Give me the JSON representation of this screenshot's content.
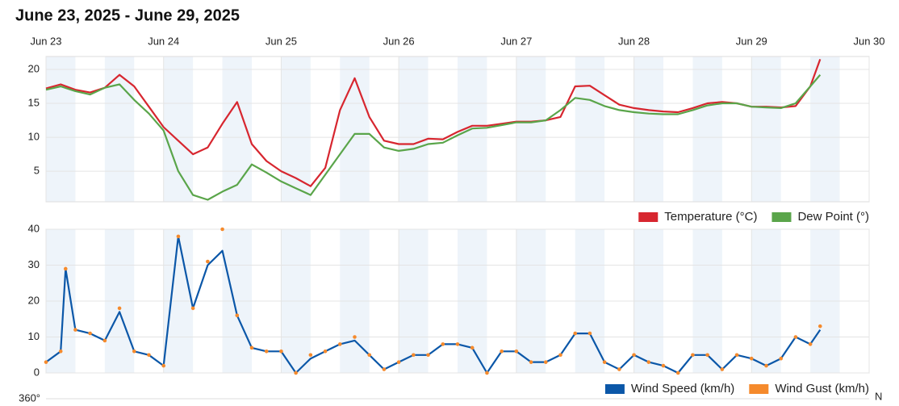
{
  "title": "June 23, 2025 - June 29, 2025",
  "direction_axis": {
    "top_label": "360°",
    "right_label": "N"
  },
  "chart_data": [
    {
      "type": "line",
      "x": [
        0,
        3,
        6,
        9,
        12,
        15,
        18,
        21,
        24,
        27,
        30,
        33,
        36,
        39,
        42,
        45,
        48,
        51,
        54,
        57,
        60,
        63,
        66,
        69,
        72,
        75,
        78,
        81,
        84,
        87,
        90,
        93,
        96,
        99,
        102,
        105,
        108,
        111,
        114,
        117,
        120,
        123,
        126,
        129,
        132,
        135,
        138,
        141,
        144,
        147,
        150,
        153,
        156,
        158
      ],
      "xlim": [
        0,
        168
      ],
      "xticks": [
        {
          "value": 0,
          "label": "Jun 23"
        },
        {
          "value": 24,
          "label": "Jun 24"
        },
        {
          "value": 48,
          "label": "Jun 25"
        },
        {
          "value": 72,
          "label": "Jun 26"
        },
        {
          "value": 96,
          "label": "Jun 27"
        },
        {
          "value": 120,
          "label": "Jun 28"
        },
        {
          "value": 144,
          "label": "Jun 29"
        },
        {
          "value": 168,
          "label": "Jun 30"
        }
      ],
      "ylim": [
        0.5,
        21.9
      ],
      "yticks": [
        5,
        10,
        15,
        20
      ],
      "grid": true,
      "legend": "bottom-right",
      "series": [
        {
          "name": "Temperature (°C)",
          "color": "#d7262f",
          "values": [
            17.2,
            17.8,
            17.0,
            16.6,
            17.3,
            19.2,
            17.5,
            14.5,
            11.5,
            9.5,
            7.5,
            8.5,
            12.0,
            15.2,
            9.0,
            6.5,
            5.0,
            4.0,
            2.8,
            5.5,
            14.0,
            18.7,
            13.0,
            9.5,
            9.0,
            9.0,
            9.8,
            9.7,
            10.8,
            11.7,
            11.7,
            12.0,
            12.3,
            12.3,
            12.5,
            13.0,
            17.5,
            17.6,
            16.2,
            14.8,
            14.3,
            14.0,
            13.8,
            13.7,
            14.3,
            15.0,
            15.2,
            15.0,
            14.5,
            14.5,
            14.4,
            14.6,
            17.5,
            21.5
          ]
        },
        {
          "name": "Dew Point (°)",
          "color": "#5aa54a",
          "values": [
            17.0,
            17.5,
            16.8,
            16.3,
            17.3,
            17.8,
            15.5,
            13.5,
            11.0,
            5.0,
            1.5,
            0.8,
            2.0,
            3.0,
            6.0,
            4.8,
            3.5,
            2.5,
            1.5,
            4.5,
            7.5,
            10.5,
            10.5,
            8.5,
            8.0,
            8.3,
            9.0,
            9.2,
            10.3,
            11.3,
            11.4,
            11.8,
            12.2,
            12.2,
            12.5,
            14.0,
            15.8,
            15.5,
            14.6,
            14.0,
            13.7,
            13.5,
            13.4,
            13.4,
            14.0,
            14.7,
            15.0,
            15.0,
            14.5,
            14.4,
            14.3,
            15.0,
            17.5,
            19.2
          ]
        }
      ]
    },
    {
      "type": "line",
      "x": [
        0,
        3,
        4,
        6,
        9,
        12,
        15,
        18,
        21,
        24,
        27,
        30,
        33,
        36,
        39,
        42,
        45,
        48,
        51,
        54,
        57,
        60,
        63,
        66,
        69,
        72,
        75,
        78,
        81,
        84,
        87,
        90,
        93,
        96,
        99,
        102,
        105,
        108,
        111,
        114,
        117,
        120,
        123,
        126,
        129,
        132,
        135,
        138,
        141,
        144,
        147,
        150,
        153,
        156,
        158
      ],
      "xlim": [
        0,
        168
      ],
      "ylim": [
        0,
        40
      ],
      "yticks": [
        0,
        10,
        20,
        30,
        40
      ],
      "grid": true,
      "legend": "bottom-right",
      "series": [
        {
          "name": "Wind Speed (km/h)",
          "color": "#0b57a8",
          "mode": "line",
          "values": [
            3,
            6,
            29,
            12,
            11,
            9,
            17,
            6,
            5,
            2,
            38,
            18,
            30,
            34,
            16,
            7,
            6,
            6,
            0,
            4,
            6,
            8,
            9,
            5,
            1,
            3,
            5,
            5,
            8,
            8,
            7,
            0,
            6,
            6,
            3,
            3,
            5,
            11,
            11,
            3,
            1,
            5,
            3,
            2,
            0,
            5,
            5,
            1,
            5,
            4,
            2,
            4,
            10,
            8,
            12
          ]
        },
        {
          "name": "Wind Gust (km/h)",
          "color": "#f58a2c",
          "mode": "markers",
          "values": [
            3,
            6,
            29,
            12,
            11,
            9,
            18,
            6,
            5,
            2,
            38,
            18,
            31,
            40,
            16,
            7,
            6,
            6,
            0,
            5,
            6,
            8,
            10,
            5,
            1,
            3,
            5,
            5,
            8,
            8,
            7,
            0,
            6,
            6,
            3,
            3,
            5,
            11,
            11,
            3,
            1,
            5,
            3,
            2,
            0,
            5,
            5,
            1,
            5,
            4,
            2,
            4,
            10,
            8,
            13
          ]
        }
      ]
    }
  ]
}
